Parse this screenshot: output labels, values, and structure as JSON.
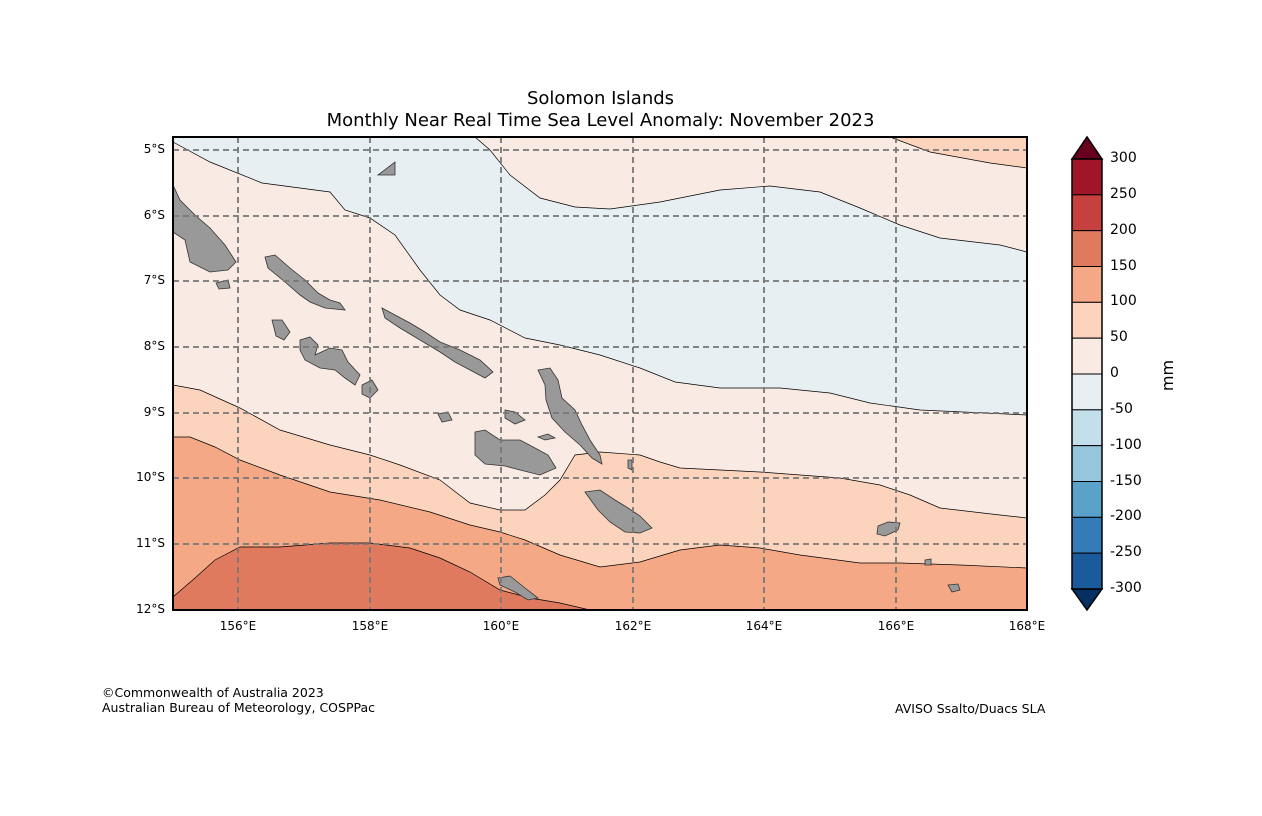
{
  "title": {
    "line1": "Solomon Islands",
    "line2": "Monthly Near Real Time Sea Level Anomaly: November 2023"
  },
  "map": {
    "lon_ticks": [
      "156°E",
      "158°E",
      "160°E",
      "162°E",
      "164°E",
      "166°E",
      "168°E"
    ],
    "lat_ticks": [
      "5°S",
      "6°S",
      "7°S",
      "8°S",
      "9°S",
      "10°S",
      "11°S",
      "12°S"
    ],
    "land_color": "#999999"
  },
  "colorbar": {
    "unit": "mm",
    "labels": [
      "300",
      "250",
      "200",
      "150",
      "100",
      "50",
      "0",
      "-50",
      "-100",
      "-150",
      "-200",
      "-250",
      "-300"
    ],
    "colors": [
      "#a01528",
      "#c6413e",
      "#e07a5f",
      "#f4a886",
      "#fcd3bc",
      "#f9ebe3",
      "#e7eff2",
      "#c4dfec",
      "#96c6de",
      "#5ba2cb",
      "#337cb7",
      "#1b5a9b"
    ],
    "over_color": "#67001f",
    "under_color": "#053061"
  },
  "footer": {
    "copyright": "©Commonwealth of Australia 2023",
    "agency": "Australian Bureau of Meteorology, COSPPac",
    "source": "AVISO Ssalto/Duacs SLA"
  }
}
